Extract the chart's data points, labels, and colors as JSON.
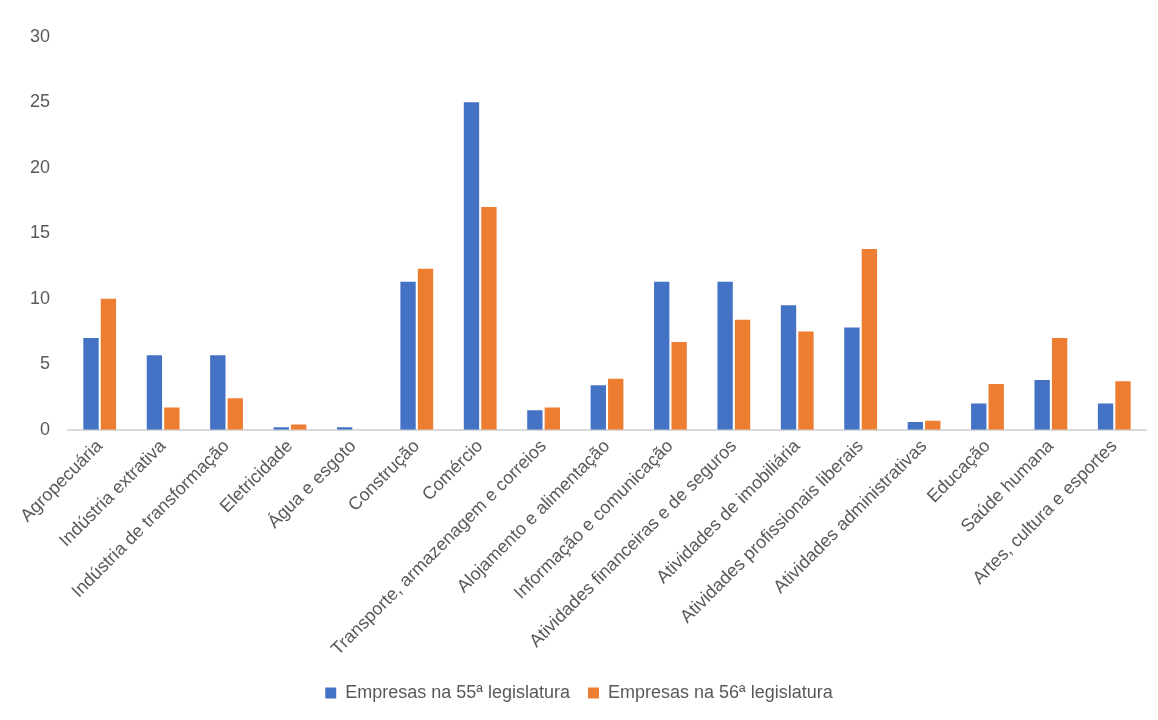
{
  "chart_data": {
    "type": "bar",
    "categories": [
      "Agropecuária",
      "Indústria extrativa",
      "Indústria de transformação",
      "Eletricidade",
      "Água e esgoto",
      "Construção",
      "Comércio",
      "Transporte, armazenagem e correios",
      "Alojamento e alimentação",
      "Informação e comunicação",
      "Atividades financeiras e de seguros",
      "Atividades de imobiliária",
      "Atividades profissionais liberais",
      "Atividades administrativas",
      "Educação",
      "Saúde humana",
      "Artes, cultura e esportes"
    ],
    "series": [
      {
        "name": "Empresas na 55ª legislatura",
        "color": "#4472c4",
        "values": [
          7.0,
          5.7,
          5.7,
          0.2,
          0.2,
          11.3,
          25.0,
          1.5,
          3.4,
          11.3,
          11.3,
          9.5,
          7.8,
          0.6,
          2.0,
          3.8,
          2.0
        ]
      },
      {
        "name": "Empresas na 56ª legislatura",
        "color": "#ed7d31",
        "values": [
          10.0,
          1.7,
          2.4,
          0.4,
          0,
          12.3,
          17.0,
          1.7,
          3.9,
          6.7,
          8.4,
          7.5,
          13.8,
          0.7,
          3.5,
          7.0,
          3.7
        ]
      }
    ],
    "ylim": [
      0,
      30
    ],
    "yticks": [
      0,
      5,
      10,
      15,
      20,
      25,
      30
    ],
    "grid": false,
    "legend": "bottom"
  }
}
